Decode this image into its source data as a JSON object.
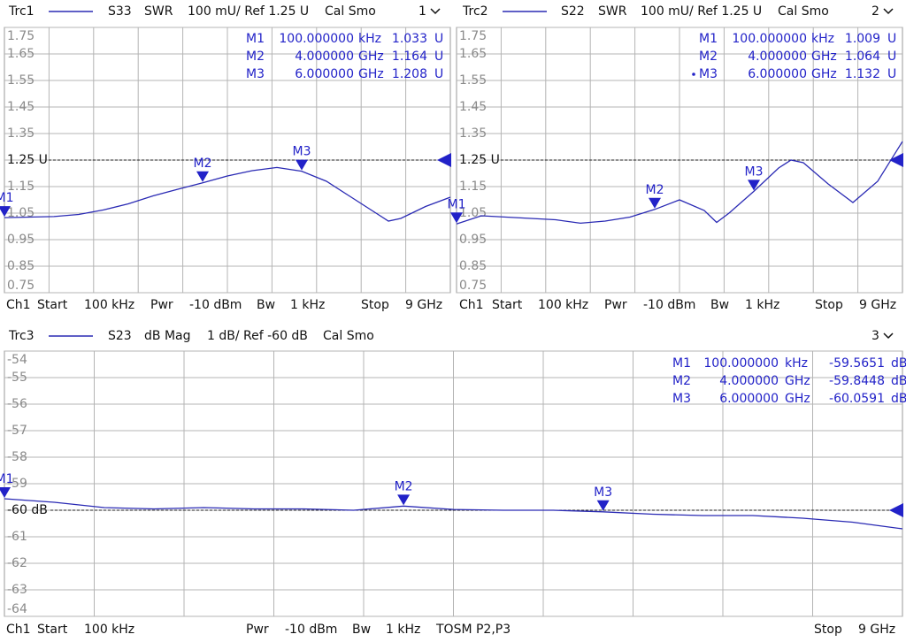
{
  "chart_data": [
    {
      "type": "line",
      "header": {
        "parameter": "S33",
        "format": "SWR",
        "scale": "100 mU/ Ref 1.25 U",
        "cal": "Cal Smo",
        "channel_number": "1"
      },
      "footer": [
        "Ch1",
        "Start",
        "100 kHz",
        "Pwr",
        "-10 dBm",
        "Bw",
        "1 kHz",
        "Stop",
        "9 GHz"
      ],
      "x": [
        0.0001,
        0.5,
        1,
        1.5,
        2,
        2.5,
        3,
        3.5,
        4,
        4.5,
        5,
        5.5,
        6,
        6.5,
        7,
        7.5,
        7.75,
        8,
        8.5,
        9
      ],
      "series": [
        {
          "name": "Trc1",
          "color": "#2a2ab4",
          "values": [
            1.033,
            1.035,
            1.037,
            1.045,
            1.062,
            1.085,
            1.115,
            1.14,
            1.164,
            1.19,
            1.21,
            1.222,
            1.208,
            1.17,
            1.11,
            1.05,
            1.02,
            1.03,
            1.075,
            1.11
          ]
        }
      ],
      "xlim": [
        0.0001,
        9
      ],
      "ylim": [
        0.75,
        1.75
      ],
      "yticks": [
        1.75,
        1.65,
        1.55,
        1.45,
        1.35,
        {
          "value": 1.25,
          "label": "1.25 U"
        },
        1.15,
        1.05,
        0.95,
        0.85,
        0.75
      ],
      "reference_level": 1.25,
      "grid": true,
      "markers": [
        {
          "name": "M1",
          "x": 0.0001,
          "x_label": "100.000000",
          "x_unit": "kHz",
          "y": 1.033,
          "y_unit": "U"
        },
        {
          "name": "M2",
          "x": 4,
          "x_label": "4.000000",
          "x_unit": "GHz",
          "y": 1.164,
          "y_unit": "U"
        },
        {
          "name": "M3",
          "x": 6,
          "x_label": "6.000000",
          "x_unit": "GHz",
          "y": 1.208,
          "y_unit": "U"
        }
      ]
    },
    {
      "type": "line",
      "header": {
        "parameter": "S22",
        "format": "SWR",
        "scale": "100 mU/ Ref 1.25 U",
        "cal": "Cal Smo",
        "channel_number": "2"
      },
      "footer": [
        "Ch1",
        "Start",
        "100 kHz",
        "Pwr",
        "-10 dBm",
        "Bw",
        "1 kHz",
        "Stop",
        "9 GHz"
      ],
      "x": [
        0.0001,
        0.5,
        1,
        1.5,
        2,
        2.5,
        3,
        3.5,
        4,
        4.5,
        5,
        5.25,
        5.5,
        6,
        6.5,
        6.75,
        7,
        7.5,
        8,
        8.5,
        9
      ],
      "series": [
        {
          "name": "Trc2",
          "color": "#2a2ab4",
          "values": [
            1.009,
            1.04,
            1.035,
            1.03,
            1.025,
            1.012,
            1.02,
            1.035,
            1.064,
            1.1,
            1.06,
            1.015,
            1.05,
            1.132,
            1.22,
            1.25,
            1.24,
            1.16,
            1.09,
            1.17,
            1.32
          ]
        }
      ],
      "xlim": [
        0.0001,
        9
      ],
      "ylim": [
        0.75,
        1.75
      ],
      "yticks": [
        1.75,
        1.65,
        1.55,
        1.45,
        1.35,
        {
          "value": 1.25,
          "label": "1.25 U"
        },
        1.15,
        1.05,
        0.95,
        0.85,
        0.75
      ],
      "reference_level": 1.25,
      "grid": true,
      "markers": [
        {
          "name": "M1",
          "x": 0.0001,
          "x_label": "100.000000",
          "x_unit": "kHz",
          "y": 1.009,
          "y_unit": "U"
        },
        {
          "name": "M2",
          "x": 4,
          "x_label": "4.000000",
          "x_unit": "GHz",
          "y": 1.064,
          "y_unit": "U"
        },
        {
          "name": "M3",
          "x": 6,
          "x_label": "6.000000",
          "x_unit": "GHz",
          "y": 1.132,
          "y_unit": "U"
        }
      ]
    },
    {
      "type": "line",
      "header": {
        "parameter": "S23",
        "format": "dB Mag",
        "scale": "1 dB/ Ref -60 dB",
        "cal": "Cal Smo",
        "channel_number": "3"
      },
      "footer": [
        "Ch1",
        "Start",
        "100 kHz",
        "Pwr",
        "-10 dBm",
        "Bw",
        "1 kHz",
        "TOSM P2,P3",
        "Stop",
        "9 GHz"
      ],
      "x": [
        0.0001,
        0.5,
        1,
        1.5,
        2,
        2.5,
        3,
        3.5,
        4,
        4.5,
        5,
        5.5,
        6,
        6.5,
        7,
        7.5,
        8,
        8.5,
        9
      ],
      "series": [
        {
          "name": "Trc3",
          "color": "#2a2ab4",
          "values": [
            -59.5651,
            -59.7,
            -59.9,
            -59.95,
            -59.9,
            -59.95,
            -59.95,
            -60.0,
            -59.8448,
            -59.97,
            -60.0,
            -60.0,
            -60.0591,
            -60.15,
            -60.2,
            -60.2,
            -60.3,
            -60.45,
            -60.7
          ]
        }
      ],
      "xlim": [
        0.0001,
        9
      ],
      "ylim": [
        -64,
        -54
      ],
      "yticks": [
        -54,
        -55,
        -56,
        -57,
        -58,
        -59,
        {
          "value": -60,
          "label": "-60 dB"
        },
        -61,
        -62,
        -63,
        -64
      ],
      "reference_level": -60,
      "grid": true,
      "markers": [
        {
          "name": "M1",
          "x": 0.0001,
          "x_label": "100.000000",
          "x_unit": "kHz",
          "y": -59.5651,
          "y_unit": "dB"
        },
        {
          "name": "M2",
          "x": 4,
          "x_label": "4.000000",
          "x_unit": "GHz",
          "y": -59.8448,
          "y_unit": "dB"
        },
        {
          "name": "M3",
          "x": 6,
          "x_label": "6.000000",
          "x_unit": "GHz",
          "y": -60.0591,
          "y_unit": "dB"
        }
      ]
    }
  ]
}
